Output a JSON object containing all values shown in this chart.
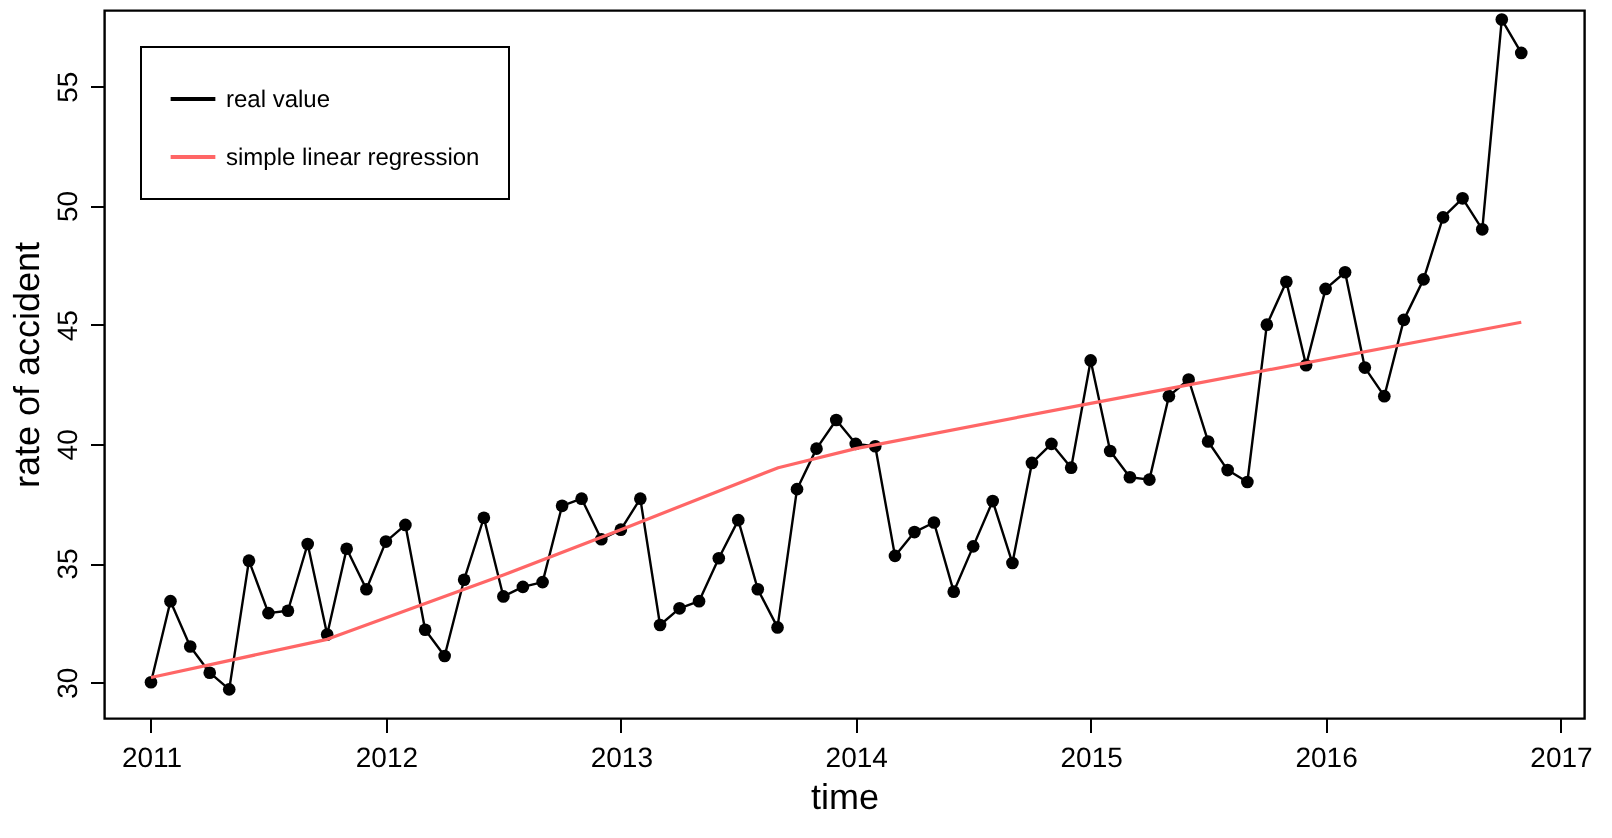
{
  "chart_data": {
    "type": "line",
    "xlabel": "time",
    "ylabel": "rate of accident",
    "xlim": [
      2010.8,
      2017.1
    ],
    "xticks": [
      2011,
      2012,
      2013,
      2014,
      2015,
      2016,
      2017
    ],
    "ylim": [
      28.5,
      58.2
    ],
    "yticks": [
      30,
      35,
      40,
      45,
      50,
      55
    ],
    "grid": false,
    "legend": "top left",
    "series": [
      {
        "name": "real value",
        "color": "#000000",
        "marker": "circle",
        "x": [
          2011.0,
          2011.083,
          2011.167,
          2011.25,
          2011.333,
          2011.417,
          2011.5,
          2011.583,
          2011.667,
          2011.75,
          2011.833,
          2011.917,
          2012.0,
          2012.083,
          2012.167,
          2012.25,
          2012.333,
          2012.417,
          2012.5,
          2012.583,
          2012.667,
          2012.75,
          2012.833,
          2012.917,
          2013.0,
          2013.083,
          2013.167,
          2013.25,
          2013.333,
          2013.417,
          2013.5,
          2013.583,
          2013.667,
          2013.75,
          2013.833,
          2013.917,
          2014.0,
          2014.083,
          2014.167,
          2014.25,
          2014.333,
          2014.417,
          2014.5,
          2014.583,
          2014.667,
          2014.75,
          2014.833,
          2014.917,
          2015.0,
          2015.083,
          2015.167,
          2015.25,
          2015.333,
          2015.417,
          2015.5,
          2015.583,
          2015.667,
          2015.75,
          2015.833,
          2015.917,
          2016.0,
          2016.083,
          2016.167,
          2016.25,
          2016.333,
          2016.417,
          2016.5,
          2016.583,
          2016.667,
          2016.75,
          2016.833
        ],
        "values": [
          30.0,
          33.4,
          31.5,
          30.4,
          29.7,
          35.1,
          32.9,
          33.0,
          35.8,
          32.0,
          35.6,
          33.9,
          35.9,
          36.6,
          32.2,
          31.1,
          34.3,
          36.9,
          33.6,
          34.0,
          34.2,
          37.4,
          37.7,
          36.0,
          36.4,
          37.7,
          32.4,
          33.1,
          33.4,
          35.2,
          36.8,
          33.9,
          32.3,
          38.1,
          39.8,
          41.0,
          40.0,
          39.9,
          35.3,
          36.3,
          36.7,
          33.8,
          35.7,
          37.6,
          35.0,
          39.2,
          40.0,
          39.0,
          43.5,
          39.7,
          38.6,
          38.5,
          42.0,
          42.7,
          40.1,
          38.9,
          38.4,
          45.0,
          46.8,
          43.3,
          46.5,
          47.2,
          43.2,
          42.0,
          45.2,
          46.9,
          49.5,
          50.3,
          49.0,
          57.8,
          56.4
        ]
      },
      {
        "name": "simple linear regression",
        "color": "#ff6666",
        "marker": "none",
        "x": [
          2011.0,
          2011.75,
          2012.5,
          2013.0,
          2013.67,
          2014.0,
          2015.0,
          2016.833
        ],
        "values": [
          30.2,
          31.8,
          34.5,
          36.4,
          39.0,
          39.8,
          41.7,
          45.1
        ]
      }
    ]
  }
}
